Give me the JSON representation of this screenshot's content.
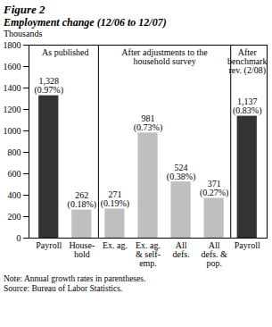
{
  "chart_data": {
    "type": "bar",
    "title": "Figure 2",
    "subtitle": "Employment change (12/06 to 12/07)",
    "y_label": "Thousands",
    "categories": [
      "Payroll",
      "House-\nhold",
      "Ex. ag.",
      "Ex. ag.\n& self-\nemp.",
      "All\ndefs.",
      "All\ndefs. &\npop.",
      "Payroll"
    ],
    "values": [
      1328,
      262,
      271,
      981,
      524,
      371,
      1137
    ],
    "value_labels": [
      "1,328",
      "262",
      "271",
      "981",
      "524",
      "371",
      "1,137"
    ],
    "growth_rates": [
      {
        "value": 0.97,
        "label": "(0.97%)"
      },
      {
        "value": 0.18,
        "label": "(0.18%)"
      },
      {
        "value": 0.19,
        "label": "(0.19%)"
      },
      {
        "value": 0.73,
        "label": "(0.73%)"
      },
      {
        "value": 0.38,
        "label": "(0.38%)"
      },
      {
        "value": 0.27,
        "label": "(0.27%)"
      },
      {
        "value": 0.83,
        "label": "(0.83%)"
      }
    ],
    "colors": [
      "#333333",
      "#bfbfbf",
      "#bfbfbf",
      "#bfbfbf",
      "#bfbfbf",
      "#bfbfbf",
      "#333333"
    ],
    "sections": [
      {
        "text": "As published",
        "bars": 2
      },
      {
        "text": "After adjustments to the\nhousehold survey",
        "bars": 4
      },
      {
        "text": "After\nbenchmark\nrev. (2/08)",
        "bars": 1
      }
    ],
    "ylim": [
      0,
      1800
    ],
    "yticks": [
      0,
      200,
      400,
      600,
      800,
      1000,
      1200,
      1400,
      1600,
      1800
    ],
    "grid": false,
    "data_labels": true,
    "notes": [
      "Note: Annual growth rates in parentheses.",
      "Source: Bureau of Labor Statistics."
    ]
  }
}
